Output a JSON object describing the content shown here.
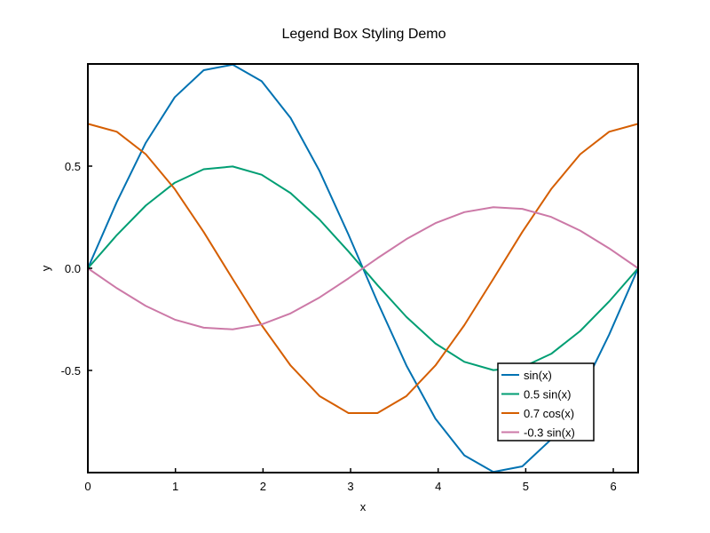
{
  "chart_data": {
    "type": "line",
    "title": "Legend Box Styling Demo",
    "xlabel": "x",
    "ylabel": "y",
    "xlim": [
      0,
      6.2832
    ],
    "ylim": [
      -1.0,
      1.0
    ],
    "x_ticks": [
      0,
      1,
      2,
      3,
      4,
      5,
      6
    ],
    "x_tick_labels": [
      "0",
      "1",
      "2",
      "3",
      "4",
      "5",
      "6"
    ],
    "y_ticks": [
      -0.5,
      0.0,
      0.5
    ],
    "y_tick_labels": [
      "-0.5",
      "0.0",
      "0.5"
    ],
    "grid": false,
    "legend_position": "bottom-right",
    "x": [
      0,
      0.3307,
      0.6614,
      0.9921,
      1.3228,
      1.6535,
      1.9842,
      2.3149,
      2.6456,
      2.9762,
      3.3069,
      3.6376,
      3.9683,
      4.299,
      4.6297,
      4.9604,
      5.2911,
      5.6218,
      5.9525,
      6.2832
    ],
    "series": [
      {
        "name": "sin(x)",
        "color": "#0072B2",
        "values": [
          0.0,
          0.3247,
          0.6142,
          0.8372,
          0.9694,
          0.9966,
          0.9158,
          0.7357,
          0.4759,
          0.1646,
          -0.1646,
          -0.4759,
          -0.7357,
          -0.9158,
          -0.9966,
          -0.9694,
          -0.8372,
          -0.6142,
          -0.3247,
          0.0
        ]
      },
      {
        "name": "0.5 sin(x)",
        "color": "#009E73",
        "values": [
          0.0,
          0.1624,
          0.3071,
          0.4186,
          0.4847,
          0.4983,
          0.4579,
          0.3679,
          0.238,
          0.0823,
          -0.0823,
          -0.238,
          -0.3679,
          -0.4579,
          -0.4983,
          -0.4847,
          -0.4186,
          -0.3071,
          -0.1624,
          0.0
        ]
      },
      {
        "name": "0.7 cos(x)",
        "color": "#D55E00",
        "values": [
          0.7071,
          0.6683,
          0.5582,
          0.3879,
          0.1775,
          -0.0523,
          -0.2783,
          -0.476,
          -0.6254,
          -0.7085,
          -0.7085,
          -0.6254,
          -0.476,
          -0.2783,
          -0.0523,
          0.1775,
          0.3879,
          0.5582,
          0.6683,
          0.7071
        ]
      },
      {
        "name": "-0.3 sin(x)",
        "color": "#CC79A7",
        "values": [
          0.0,
          -0.0974,
          -0.1843,
          -0.2512,
          -0.2908,
          -0.299,
          -0.2747,
          -0.2207,
          -0.1428,
          -0.0494,
          0.0494,
          0.1428,
          0.2207,
          0.2747,
          0.299,
          0.2908,
          0.2512,
          0.1843,
          0.0974,
          0.0
        ]
      }
    ]
  }
}
